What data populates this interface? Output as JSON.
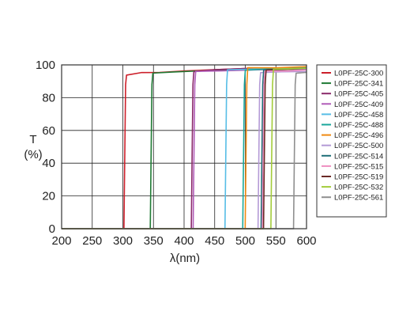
{
  "chart_data": {
    "type": "line",
    "title": "",
    "xlabel": "λ(nm)",
    "ylabel": "T",
    "ylabel_unit": "(%)",
    "xlim": [
      200,
      600
    ],
    "ylim": [
      0,
      100
    ],
    "xticks": [
      "200",
      "250",
      "300",
      "350",
      "400",
      "450",
      "500",
      "550",
      "600"
    ],
    "yticks": [
      "0",
      "20",
      "40",
      "60",
      "80",
      "100"
    ],
    "grid": true,
    "legend_position": "right",
    "series": [
      {
        "name": "L0PF-25C-300",
        "color": "#cc1f2a",
        "cutoff": 303,
        "plateau": [
          [
            306,
            94
          ],
          [
            330,
            95
          ],
          [
            360,
            95.5
          ],
          [
            400,
            96
          ],
          [
            450,
            97
          ],
          [
            500,
            98
          ],
          [
            600,
            98.5
          ]
        ]
      },
      {
        "name": "L0PF-25C-341",
        "color": "#1f7a34",
        "cutoff": 346,
        "plateau": [
          [
            349,
            95
          ],
          [
            380,
            95.5
          ],
          [
            420,
            96
          ],
          [
            480,
            97
          ],
          [
            550,
            98
          ],
          [
            600,
            98
          ]
        ]
      },
      {
        "name": "L0PF-25C-405",
        "color": "#8a2a6a",
        "cutoff": 413,
        "plateau": [
          [
            416,
            96
          ],
          [
            450,
            97
          ],
          [
            500,
            98
          ],
          [
            600,
            98.5
          ]
        ]
      },
      {
        "name": "L0PF-25C-409",
        "color": "#b05bb8",
        "cutoff": 416,
        "plateau": [
          [
            419,
            96
          ],
          [
            460,
            96.5
          ],
          [
            520,
            97
          ],
          [
            600,
            97.5
          ]
        ]
      },
      {
        "name": "L0PF-25C-458",
        "color": "#56bde6",
        "cutoff": 468,
        "plateau": [
          [
            471,
            97
          ],
          [
            520,
            97.5
          ],
          [
            600,
            98
          ]
        ]
      },
      {
        "name": "L0PF-25C-488",
        "color": "#1aa79b",
        "cutoff": 497,
        "plateau": [
          [
            500,
            97
          ],
          [
            550,
            98
          ],
          [
            600,
            98.5
          ]
        ]
      },
      {
        "name": "L0PF-25C-496",
        "color": "#f08a12",
        "cutoff": 501,
        "plateau": [
          [
            504,
            98
          ],
          [
            550,
            98.5
          ],
          [
            600,
            99
          ]
        ]
      },
      {
        "name": "L0PF-25C-500",
        "color": "#b49ad6",
        "cutoff": 522,
        "plateau": [
          [
            525,
            95
          ],
          [
            560,
            95.5
          ],
          [
            600,
            96
          ]
        ]
      },
      {
        "name": "L0PF-25C-514",
        "color": "#1e6e78",
        "cutoff": 527,
        "plateau": [
          [
            530,
            97
          ],
          [
            570,
            97.5
          ],
          [
            600,
            98
          ]
        ]
      },
      {
        "name": "L0PF-25C-515",
        "color": "#ee8ec0",
        "cutoff": 529,
        "plateau": [
          [
            532,
            96
          ],
          [
            570,
            96.5
          ],
          [
            600,
            97
          ]
        ]
      },
      {
        "name": "L0PF-25C-519",
        "color": "#6a2a26",
        "cutoff": 531,
        "plateau": [
          [
            534,
            97
          ],
          [
            570,
            97.5
          ],
          [
            600,
            98
          ]
        ]
      },
      {
        "name": "L0PF-25C-532",
        "color": "#a3cc3a",
        "cutoff": 543,
        "plateau": [
          [
            546,
            97
          ],
          [
            575,
            97.5
          ],
          [
            600,
            98
          ]
        ]
      },
      {
        "name": "L0PF-25C-561",
        "color": "#8f8f8f",
        "cutoff": 580,
        "plateau": [
          [
            583,
            95
          ],
          [
            600,
            95.5
          ]
        ]
      }
    ]
  }
}
